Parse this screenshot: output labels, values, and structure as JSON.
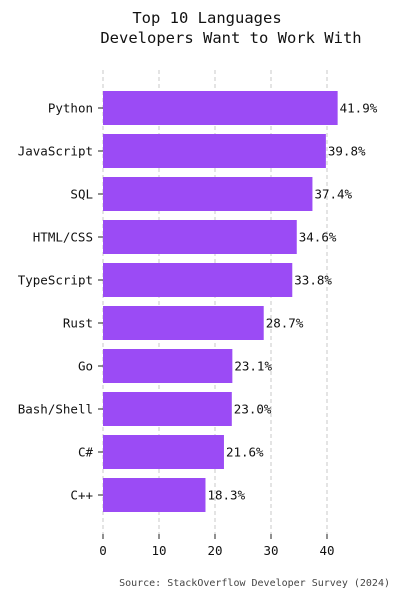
{
  "chart_data": {
    "type": "bar",
    "orientation": "horizontal",
    "title_lines": [
      "Top 10 Languages",
      "Developers Want to Work With"
    ],
    "categories": [
      "Python",
      "JavaScript",
      "SQL",
      "HTML/CSS",
      "TypeScript",
      "Rust",
      "Go",
      "Bash/Shell",
      "C#",
      "C++"
    ],
    "values": [
      41.9,
      39.8,
      37.4,
      34.6,
      33.8,
      28.7,
      23.1,
      23.0,
      21.6,
      18.3
    ],
    "value_labels": [
      "41.9%",
      "39.8%",
      "37.4%",
      "34.6%",
      "33.8%",
      "28.7%",
      "23.1%",
      "23.0%",
      "21.6%",
      "18.3%"
    ],
    "xticks": [
      0,
      10,
      20,
      30,
      40
    ],
    "xlim": [
      0,
      44
    ],
    "xlabel": "",
    "ylabel": "",
    "grid": "x-dashed",
    "bar_color": "#9b4bf5",
    "source": "Source: StackOverflow Developer Survey (2024)"
  }
}
